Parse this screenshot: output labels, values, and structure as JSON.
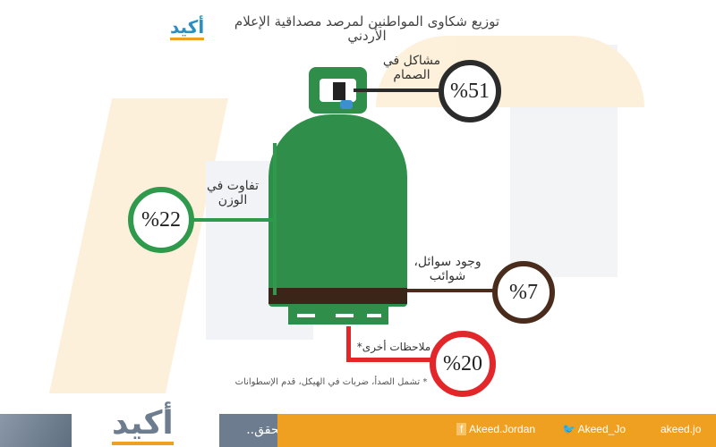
{
  "title": "توزيع شكاوى المواطنين لمرصد مصداقية الإعلام الأردني",
  "logo_text": "أكيد",
  "items": [
    {
      "label": "مشاكل في الصمام",
      "value": "%51",
      "color": "#2b2b2b"
    },
    {
      "label": "تفاوت في الوزن",
      "value": "%22",
      "color": "#2f9a4c"
    },
    {
      "label": "وجود سوائل، شوائب",
      "value": "%7",
      "color": "#4a2c1c"
    },
    {
      "label": "ملاحظات أخرى*",
      "value": "%20",
      "color": "#e2262a"
    }
  ],
  "footnote": "* تشمل الصدأ، ضربات في الهيكل، قدم الإسطوانات",
  "footer": {
    "hashtags": "#أكيد.. #تحقق..",
    "facebook": "Akeed.Jordan",
    "twitter": "Akeed_Jo",
    "website": "akeed.jo"
  },
  "colors": {
    "cylinder": "#2f8f4a",
    "band": "#3b2418",
    "footer_grey": "#6d7d8f",
    "footer_orange": "#f0a020"
  }
}
